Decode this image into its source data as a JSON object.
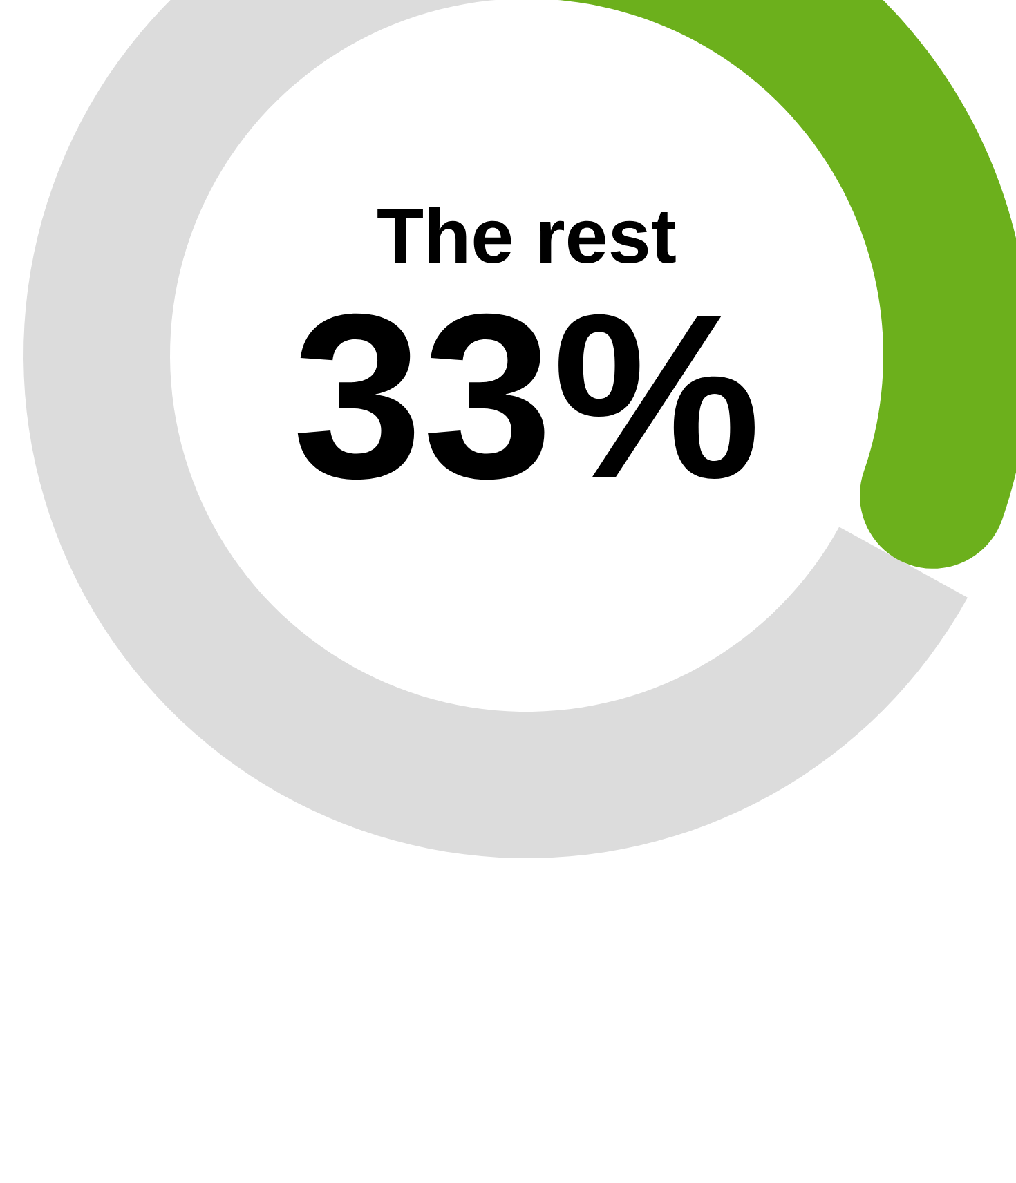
{
  "chart_data": {
    "type": "donut",
    "categories": [
      "The rest",
      null
    ],
    "values": [
      33,
      67
    ],
    "colors": [
      "#6cb01c",
      "#dcdcdc"
    ],
    "value_labels": [
      "33%",
      null
    ]
  }
}
